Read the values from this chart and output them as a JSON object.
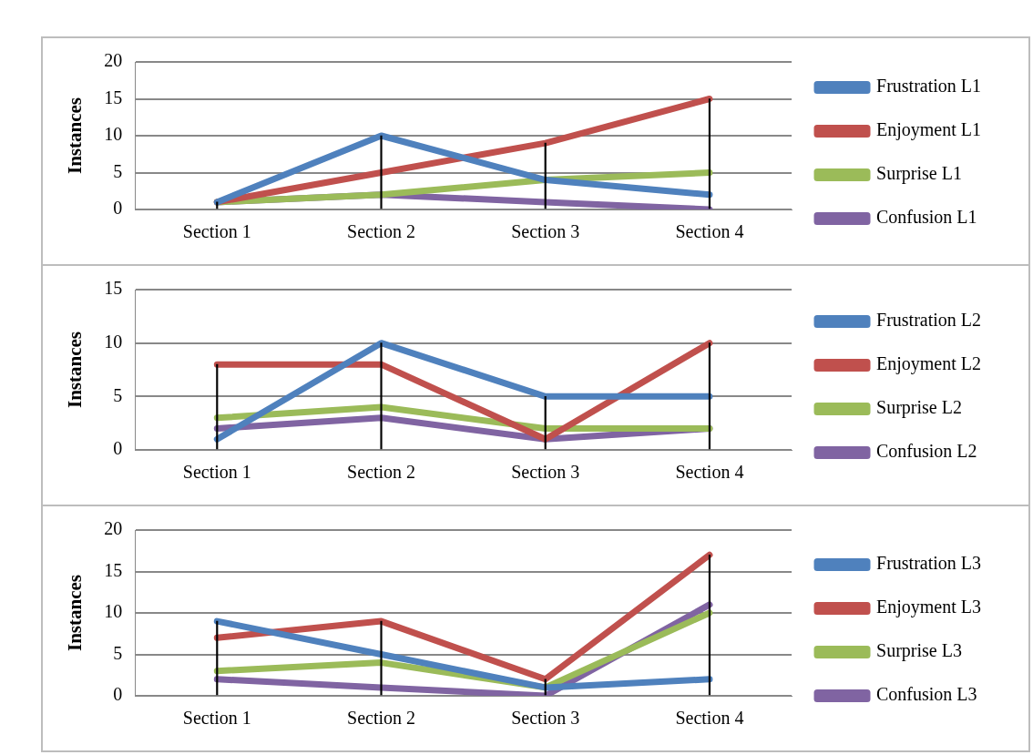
{
  "chart_data": [
    {
      "type": "line",
      "categories": [
        "Section 1",
        "Section 2",
        "Section 3",
        "Section 4"
      ],
      "ylabel": "Instances",
      "ylim": [
        0,
        20
      ],
      "yticks": [
        0,
        5,
        10,
        15,
        20
      ],
      "grid": "y",
      "legend": "right",
      "series": [
        {
          "name": "Frustration L1",
          "color": "#4f81bd",
          "values": [
            1,
            10,
            4,
            2
          ]
        },
        {
          "name": "Enjoyment L1",
          "color": "#c0504d",
          "values": [
            1,
            5,
            9,
            15
          ]
        },
        {
          "name": "Surprise L1",
          "color": "#9bbb59",
          "values": [
            1,
            2,
            4,
            5
          ]
        },
        {
          "name": "Confusion L1",
          "color": "#8064a2",
          "values": [
            1,
            2,
            1,
            0
          ]
        },
        {
          "type": "bar",
          "color": "#000000",
          "values": [
            1,
            10,
            9,
            15
          ]
        }
      ]
    },
    {
      "type": "line",
      "categories": [
        "Section 1",
        "Section 2",
        "Section 3",
        "Section 4"
      ],
      "ylabel": "Instances",
      "ylim": [
        0,
        15
      ],
      "yticks": [
        0,
        5,
        10,
        15
      ],
      "grid": "y",
      "legend": "right",
      "series": [
        {
          "name": "Frustration L2",
          "color": "#4f81bd",
          "values": [
            1,
            10,
            5,
            5
          ]
        },
        {
          "name": "Enjoyment L2",
          "color": "#c0504d",
          "values": [
            8,
            8,
            1,
            10
          ]
        },
        {
          "name": "Surprise L2",
          "color": "#9bbb59",
          "values": [
            3,
            4,
            2,
            2
          ]
        },
        {
          "name": "Confusion L2",
          "color": "#8064a2",
          "values": [
            2,
            3,
            1,
            2
          ]
        },
        {
          "type": "bar",
          "color": "#000000",
          "values": [
            8,
            10,
            5,
            10
          ]
        }
      ]
    },
    {
      "type": "line",
      "categories": [
        "Section 1",
        "Section 2",
        "Section 3",
        "Section 4"
      ],
      "ylabel": "Instances",
      "ylim": [
        0,
        20
      ],
      "yticks": [
        0,
        5,
        10,
        15,
        20
      ],
      "grid": "y",
      "legend": "right",
      "series": [
        {
          "name": "Frustration L3",
          "color": "#4f81bd",
          "values": [
            9,
            5,
            1,
            2
          ]
        },
        {
          "name": "Enjoyment L3",
          "color": "#c0504d",
          "values": [
            7,
            9,
            2,
            17
          ]
        },
        {
          "name": "Surprise L3",
          "color": "#9bbb59",
          "values": [
            3,
            4,
            1,
            10
          ]
        },
        {
          "name": "Confusion L3",
          "color": "#8064a2",
          "values": [
            2,
            1,
            0,
            11
          ]
        },
        {
          "type": "bar",
          "color": "#000000",
          "values": [
            9,
            9,
            2,
            17
          ]
        }
      ]
    }
  ]
}
